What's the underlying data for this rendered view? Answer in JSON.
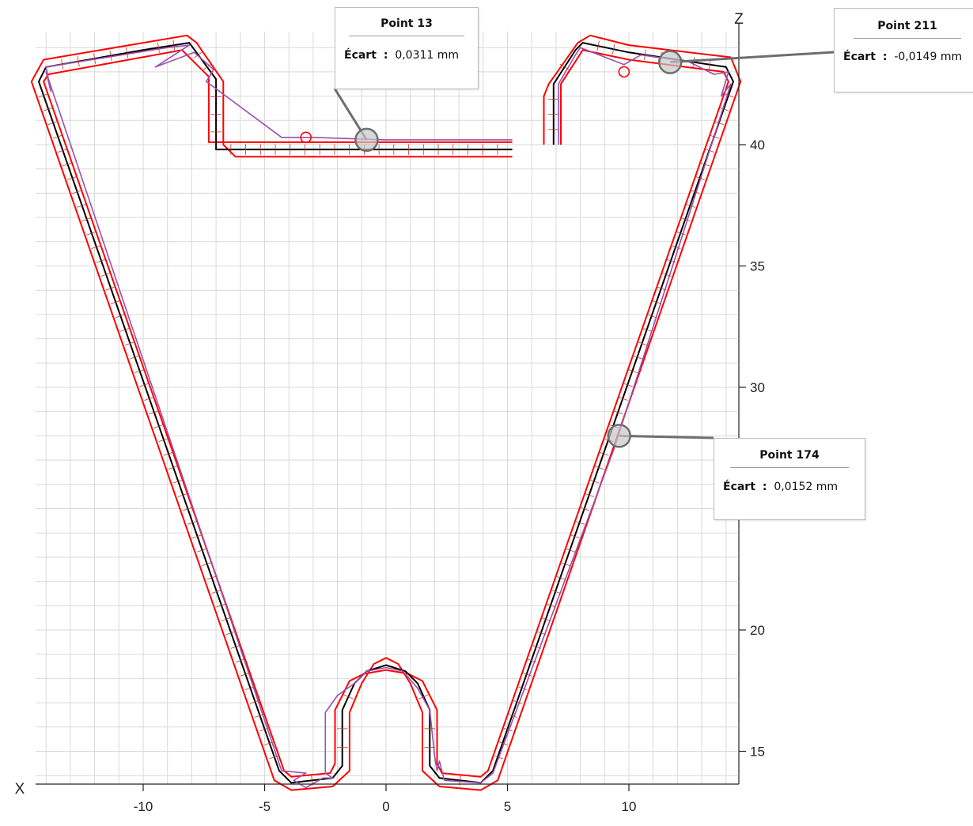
{
  "chart_data": {
    "type": "line",
    "x_axis_name": "X",
    "y_axis_name": "Z",
    "xlim": [
      -14.5,
      14.5
    ],
    "ylim": [
      13.5,
      44
    ],
    "x_ticks": [
      -10,
      -5,
      0,
      5,
      10
    ],
    "y_ticks": [
      15,
      20,
      30,
      35,
      40
    ],
    "x_tick_labels": [
      "-10",
      "-5",
      "0",
      "5",
      "10"
    ],
    "y_tick_labels": [
      "15",
      "20",
      "30",
      "35",
      "40"
    ],
    "minor_grid_step": 1,
    "grid": true,
    "y_axis_position": "right",
    "colors": {
      "nominal": "#000000",
      "tolerance": "#ff0000",
      "measured": "#9b4fb0",
      "grid": "#d9d9d9",
      "marker": "#808080"
    },
    "series": [
      {
        "kind": "nominal",
        "segments": [
          [
            [
              5.2,
              39.8
            ],
            [
              -7,
              39.8
            ],
            [
              -7,
              42.7
            ],
            [
              -8.1,
              44.2
            ],
            [
              -10,
              43.9
            ],
            [
              -14,
              43.2
            ],
            [
              -14.3,
              42.6
            ],
            [
              -4.4,
              14.2
            ],
            [
              -3.9,
              13.7
            ],
            [
              -2.2,
              13.9
            ],
            [
              -1.8,
              14.4
            ],
            [
              -1.8,
              16.7
            ],
            [
              -1.3,
              17.8
            ],
            [
              -0.8,
              18.3
            ],
            [
              0,
              18.55
            ],
            [
              0.8,
              18.3
            ],
            [
              1.3,
              17.8
            ],
            [
              1.8,
              16.7
            ],
            [
              1.8,
              14.4
            ],
            [
              2.2,
              13.9
            ],
            [
              3.9,
              13.7
            ],
            [
              4.4,
              14.2
            ],
            [
              14.3,
              42.6
            ],
            [
              14,
              43.2
            ],
            [
              10,
              43.8
            ],
            [
              8.1,
              44.2
            ],
            [
              7.8,
              43.9
            ],
            [
              6.9,
              42.5
            ],
            [
              6.9,
              40
            ]
          ]
        ]
      },
      {
        "kind": "tolerance",
        "segments": [
          [
            [
              5.2,
              39.5
            ],
            [
              -6.2,
              39.5
            ],
            [
              -6.7,
              40
            ],
            [
              -6.7,
              42.6
            ],
            [
              -7.8,
              44.2
            ],
            [
              -8.2,
              44.5
            ],
            [
              -14.1,
              43.5
            ],
            [
              -14.6,
              42.6
            ],
            [
              -4.6,
              13.8
            ],
            [
              -3.9,
              13.4
            ],
            [
              -2.2,
              13.55
            ],
            [
              -1.5,
              14.2
            ],
            [
              -1.5,
              16.6
            ],
            [
              -1,
              17.8
            ],
            [
              -0.5,
              18.6
            ],
            [
              0,
              18.85
            ],
            [
              0.5,
              18.6
            ],
            [
              1,
              17.8
            ],
            [
              1.5,
              16.6
            ],
            [
              1.5,
              14.2
            ],
            [
              2.2,
              13.55
            ],
            [
              3.9,
              13.4
            ],
            [
              4.6,
              13.8
            ],
            [
              14.6,
              42.6
            ],
            [
              14.2,
              43.6
            ],
            [
              10,
              44.1
            ],
            [
              8.4,
              44.5
            ],
            [
              7.9,
              44.2
            ],
            [
              6.7,
              42.5
            ],
            [
              6.5,
              42
            ],
            [
              6.5,
              40
            ]
          ],
          [
            [
              5.2,
              40.1
            ],
            [
              -7.3,
              40.1
            ],
            [
              -7.3,
              42.8
            ],
            [
              -8.4,
              43.9
            ],
            [
              -13.9,
              42.9
            ],
            [
              -14.1,
              42.6
            ],
            [
              -4.2,
              14.2
            ],
            [
              -3.9,
              13.95
            ],
            [
              -2.3,
              14.1
            ],
            [
              -2.1,
              14.5
            ],
            [
              -2.1,
              16.7
            ],
            [
              -1.5,
              17.9
            ],
            [
              -0.9,
              18.2
            ],
            [
              0,
              18.35
            ],
            [
              0.9,
              18.2
            ],
            [
              1.5,
              17.9
            ],
            [
              2.1,
              16.7
            ],
            [
              2.1,
              14.5
            ],
            [
              2.3,
              14.1
            ],
            [
              3.9,
              13.95
            ],
            [
              4.2,
              14.2
            ],
            [
              14.1,
              42.6
            ],
            [
              13.9,
              43
            ],
            [
              10,
              43.5
            ],
            [
              8.1,
              43.9
            ],
            [
              7.2,
              42.5
            ],
            [
              7.2,
              40
            ]
          ]
        ]
      },
      {
        "kind": "measured",
        "segments": [
          [
            [
              5.2,
              40.2
            ],
            [
              0,
              40.2
            ],
            [
              -3,
              40.3
            ],
            [
              -4.3,
              40.3
            ],
            [
              -7.4,
              42.6
            ],
            [
              -7.1,
              43.1
            ],
            [
              -7.9,
              43.8
            ],
            [
              -9.5,
              43.2
            ],
            [
              -8.1,
              44.1
            ],
            [
              -9,
              44
            ],
            [
              -14,
              43.2
            ],
            [
              -13.8,
              42.2
            ],
            [
              -14,
              43
            ],
            [
              -4.3,
              14.2
            ],
            [
              -3.3,
              14.1
            ],
            [
              -3.8,
              13.8
            ],
            [
              -3.3,
              13.5
            ],
            [
              -2.6,
              13.9
            ],
            [
              -2.2,
              13.9
            ],
            [
              -2.5,
              14.1
            ],
            [
              -2.5,
              16.6
            ],
            [
              -2,
              17.3
            ],
            [
              -1.3,
              17.8
            ],
            [
              -0.8,
              18.3
            ],
            [
              0,
              18.45
            ],
            [
              0.7,
              18.3
            ],
            [
              1.3,
              17.6
            ],
            [
              1.8,
              16.7
            ],
            [
              2,
              14.8
            ],
            [
              2.1,
              14.2
            ],
            [
              2.2,
              14.6
            ],
            [
              2.4,
              13.8
            ],
            [
              3.9,
              13.7
            ],
            [
              4.4,
              14.1
            ],
            [
              9.4,
              27.5
            ],
            [
              14.2,
              42.5
            ],
            [
              13.8,
              42
            ],
            [
              14.1,
              43
            ],
            [
              13.5,
              42.9
            ],
            [
              12.5,
              43.4
            ],
            [
              10.5,
              43.7
            ],
            [
              9.8,
              43.3
            ],
            [
              8,
              44
            ],
            [
              7.8,
              43.7
            ],
            [
              7.1,
              42.5
            ],
            [
              7.1,
              40
            ]
          ]
        ]
      }
    ],
    "callouts": [
      {
        "title": "Point 13",
        "label": "Écart",
        "sep": ":",
        "value": "0,0311 mm",
        "x": -0.8,
        "z": 40.2
      },
      {
        "title": "Point 211",
        "label": "Écart",
        "sep": ":",
        "value": "-0,0149 mm",
        "x": 11.7,
        "z": 43.4
      },
      {
        "title": "Point 174",
        "label": "Écart",
        "sep": ":",
        "value": "0,0152 mm",
        "x": 9.6,
        "z": 28.0
      }
    ],
    "markers": [
      {
        "x": -3.3,
        "z": 40.3
      },
      {
        "x": 9.8,
        "z": 43.0
      }
    ]
  }
}
